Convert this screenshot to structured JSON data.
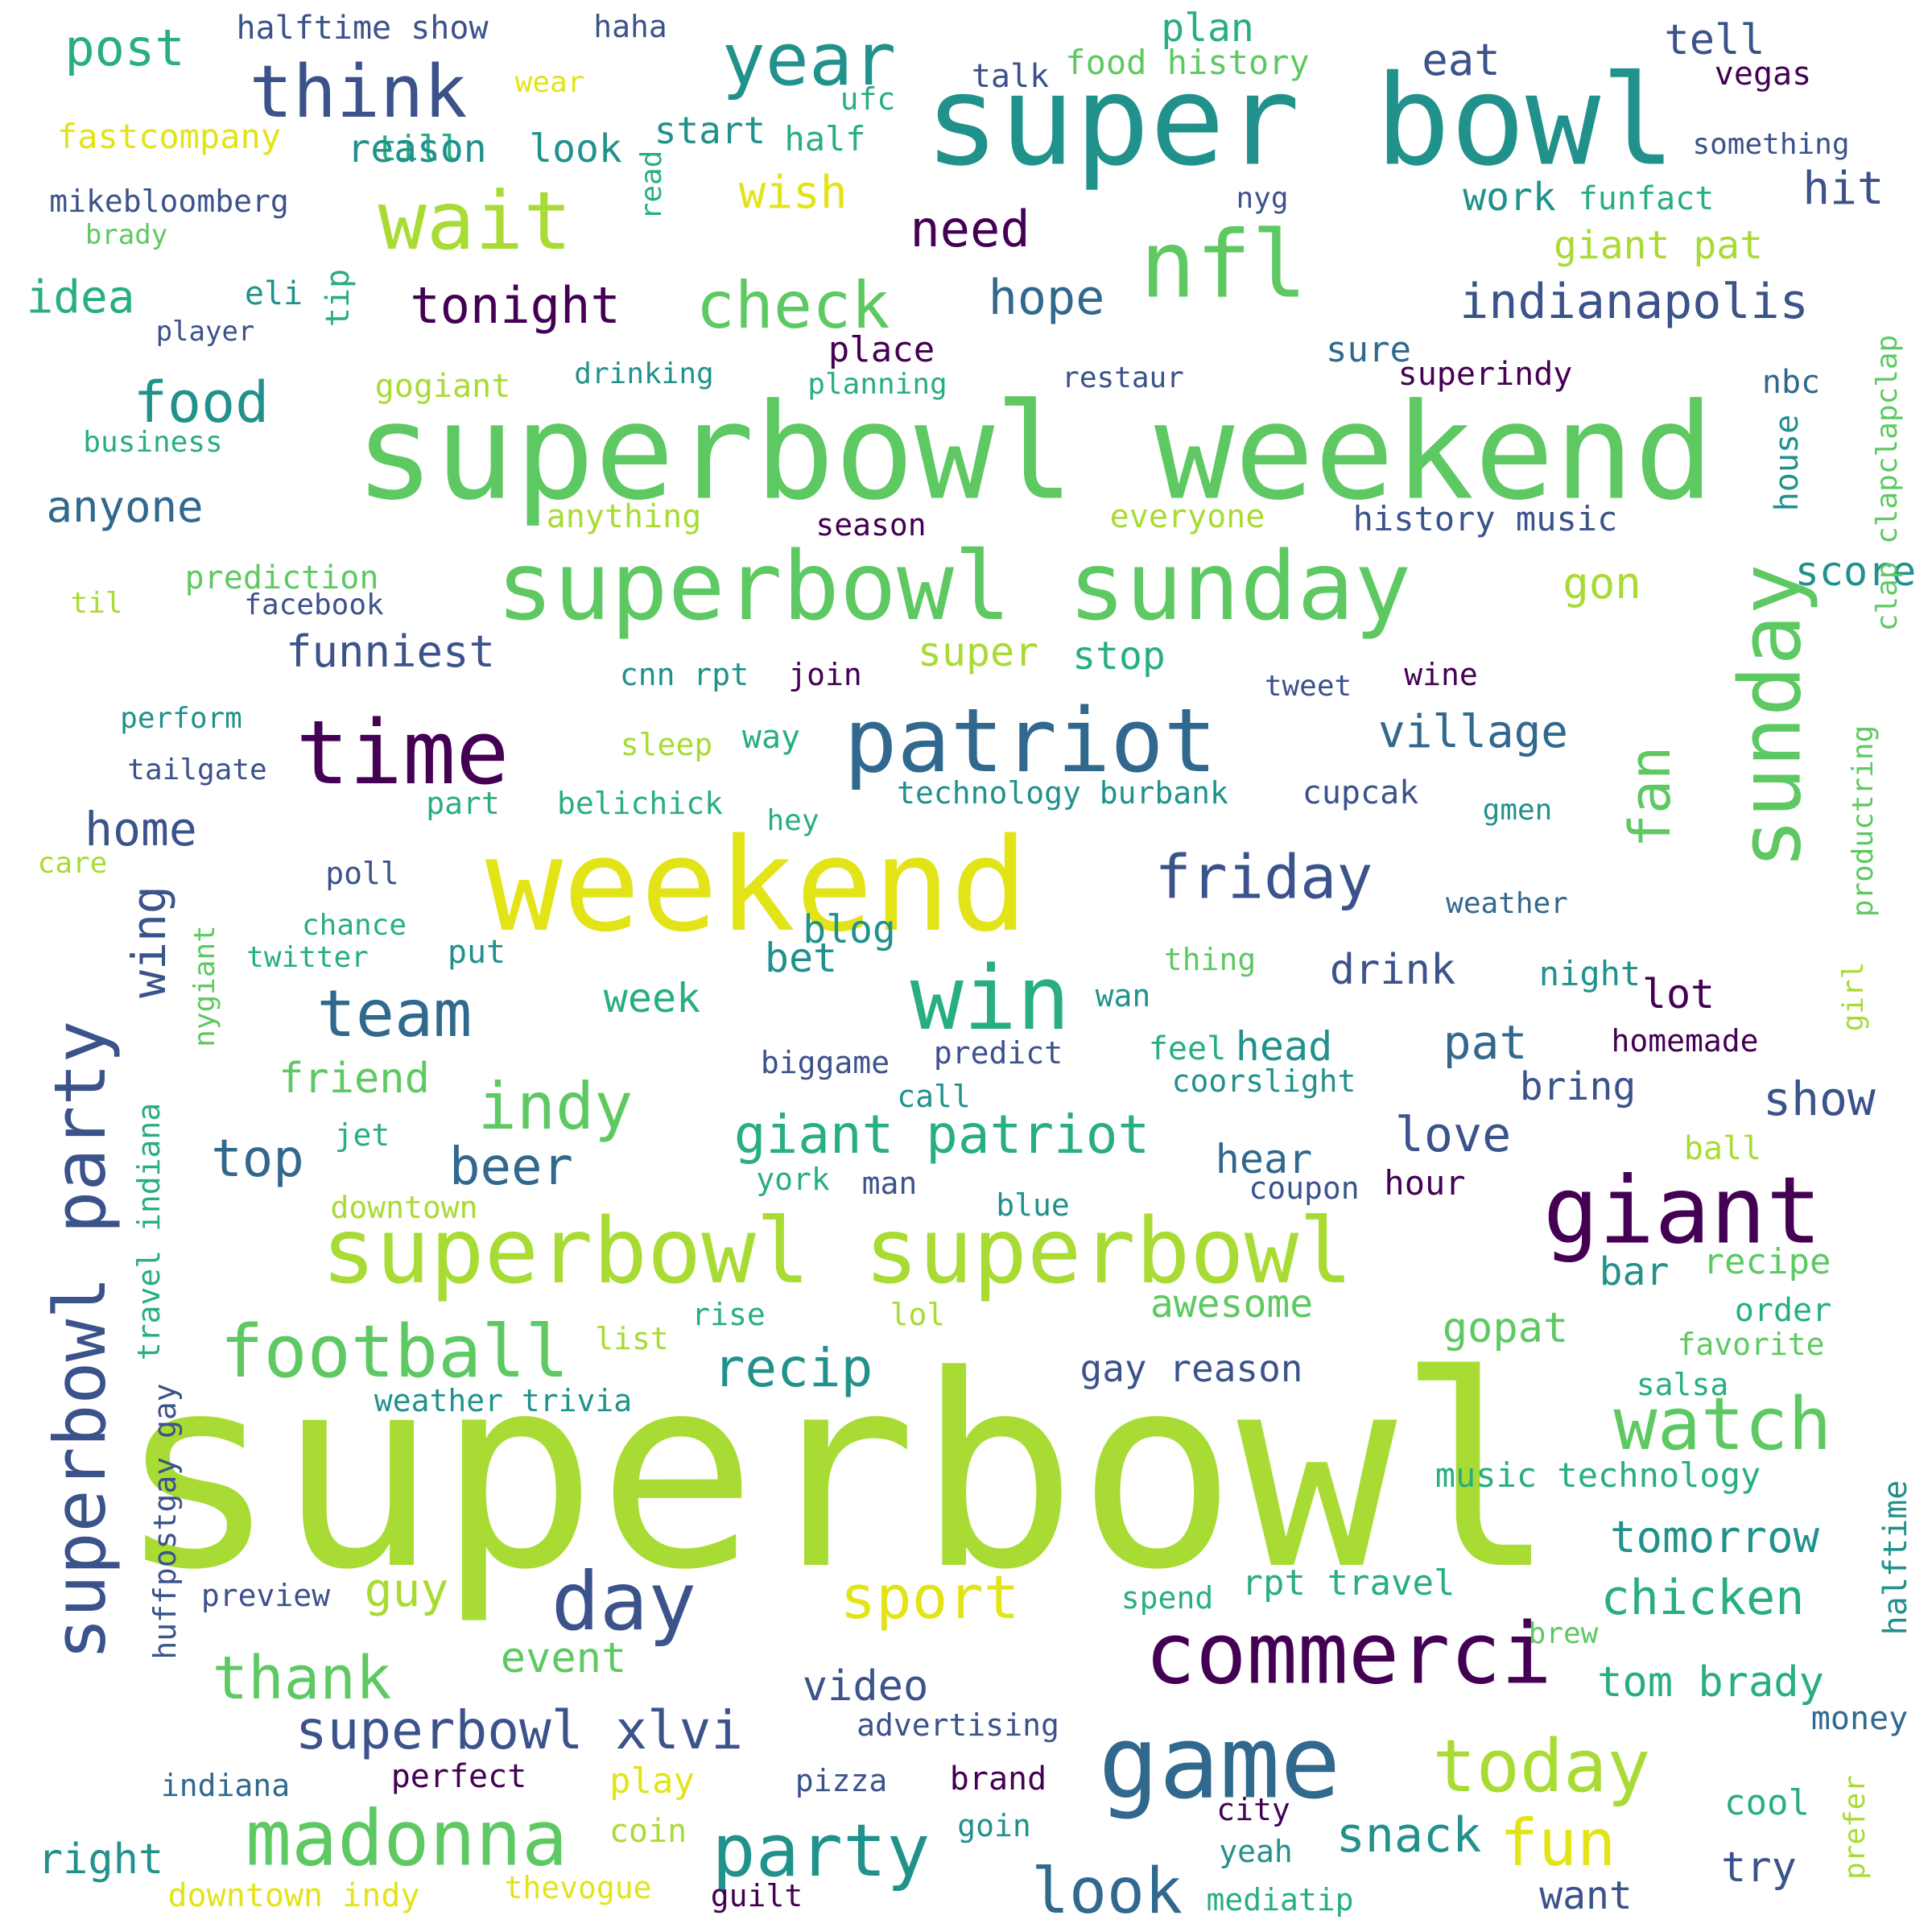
{
  "palette": {
    "yellow": "#e2e418",
    "lime": "#a8db34",
    "green": "#5ec962",
    "teal": "#21918c",
    "blue": "#31688e",
    "indigo": "#3b528b",
    "purple": "#440154",
    "aqua": "#28ae80"
  },
  "words": [
    {
      "text": "superbowl",
      "color": "lime",
      "vertical": false
    },
    {
      "text": "superbowl weekend",
      "color": "green",
      "vertical": false
    },
    {
      "text": "super bowl",
      "color": "teal",
      "vertical": false
    },
    {
      "text": "weekend",
      "color": "yellow",
      "vertical": false
    },
    {
      "text": "superbowl sunday",
      "color": "green",
      "vertical": false
    },
    {
      "text": "superbowl superbowl",
      "color": "lime",
      "vertical": false
    },
    {
      "text": "sunday",
      "color": "green",
      "vertical": true
    },
    {
      "text": "superbowl party",
      "color": "indigo",
      "vertical": true
    },
    {
      "text": "giant",
      "color": "purple",
      "vertical": false
    },
    {
      "text": "game",
      "color": "blue",
      "vertical": false
    },
    {
      "text": "commerci",
      "color": "purple",
      "vertical": false
    },
    {
      "text": "patriot",
      "color": "blue",
      "vertical": false
    },
    {
      "text": "nfl",
      "color": "green",
      "vertical": false
    },
    {
      "text": "win",
      "color": "aqua",
      "vertical": false
    },
    {
      "text": "time",
      "color": "purple",
      "vertical": false
    },
    {
      "text": "think",
      "color": "indigo",
      "vertical": false
    },
    {
      "text": "year",
      "color": "teal",
      "vertical": false
    },
    {
      "text": "wait",
      "color": "lime",
      "vertical": false
    },
    {
      "text": "madonna",
      "color": "green",
      "vertical": false
    },
    {
      "text": "football",
      "color": "green",
      "vertical": false
    },
    {
      "text": "day",
      "color": "indigo",
      "vertical": false
    },
    {
      "text": "party",
      "color": "teal",
      "vertical": false
    },
    {
      "text": "watch",
      "color": "green",
      "vertical": false
    },
    {
      "text": "today",
      "color": "lime",
      "vertical": false
    },
    {
      "text": "fun",
      "color": "yellow",
      "vertical": false
    },
    {
      "text": "look",
      "color": "blue",
      "vertical": false
    },
    {
      "text": "sport",
      "color": "yellow",
      "vertical": false
    },
    {
      "text": "team",
      "color": "blue",
      "vertical": false
    },
    {
      "text": "indy",
      "color": "green",
      "vertical": false
    },
    {
      "text": "friday",
      "color": "indigo",
      "vertical": false
    },
    {
      "text": "fan",
      "color": "green",
      "vertical": true
    },
    {
      "text": "check",
      "color": "green",
      "vertical": false
    },
    {
      "text": "indianapolis",
      "color": "indigo",
      "vertical": false
    },
    {
      "text": "giant patriot",
      "color": "aqua",
      "vertical": false
    },
    {
      "text": "superbowl xlvi",
      "color": "indigo",
      "vertical": false
    },
    {
      "text": "recip",
      "color": "teal",
      "vertical": false
    },
    {
      "text": "thank",
      "color": "green",
      "vertical": false
    },
    {
      "text": "tonight",
      "color": "purple",
      "vertical": false
    },
    {
      "text": "food",
      "color": "teal",
      "vertical": false
    },
    {
      "text": "post",
      "color": "aqua",
      "vertical": false
    },
    {
      "text": "home",
      "color": "indigo",
      "vertical": false
    },
    {
      "text": "wing",
      "color": "indigo",
      "vertical": true
    },
    {
      "text": "beer",
      "color": "blue",
      "vertical": false
    },
    {
      "text": "top",
      "color": "blue",
      "vertical": false
    },
    {
      "text": "village",
      "color": "blue",
      "vertical": false
    },
    {
      "text": "love",
      "color": "indigo",
      "vertical": false
    },
    {
      "text": "snack",
      "color": "teal",
      "vertical": false
    },
    {
      "text": "chicken",
      "color": "aqua",
      "vertical": false
    },
    {
      "text": "tomorrow",
      "color": "teal",
      "vertical": false
    },
    {
      "text": "tom brady",
      "color": "aqua",
      "vertical": false
    },
    {
      "text": "guy",
      "color": "lime",
      "vertical": false
    },
    {
      "text": "event",
      "color": "green",
      "vertical": false
    },
    {
      "text": "video",
      "color": "indigo",
      "vertical": false
    },
    {
      "text": "awesome",
      "color": "green",
      "vertical": false
    },
    {
      "text": "gopat",
      "color": "green",
      "vertical": false
    },
    {
      "text": "pat",
      "color": "blue",
      "vertical": false
    },
    {
      "text": "show",
      "color": "indigo",
      "vertical": false
    },
    {
      "text": "hope",
      "color": "blue",
      "vertical": false
    },
    {
      "text": "need",
      "color": "purple",
      "vertical": false
    },
    {
      "text": "wish",
      "color": "yellow",
      "vertical": false
    },
    {
      "text": "funniest",
      "color": "indigo",
      "vertical": false
    },
    {
      "text": "anyone",
      "color": "blue",
      "vertical": false
    },
    {
      "text": "right",
      "color": "teal",
      "vertical": false
    },
    {
      "text": "friend",
      "color": "green",
      "vertical": false
    },
    {
      "text": "drink",
      "color": "indigo",
      "vertical": false
    },
    {
      "text": "lot",
      "color": "purple",
      "vertical": false
    },
    {
      "text": "bring",
      "color": "indigo",
      "vertical": false
    },
    {
      "text": "hear",
      "color": "blue",
      "vertical": false
    },
    {
      "text": "week",
      "color": "aqua",
      "vertical": false
    },
    {
      "text": "bet",
      "color": "teal",
      "vertical": false
    },
    {
      "text": "blog",
      "color": "teal",
      "vertical": false
    },
    {
      "text": "try",
      "color": "indigo",
      "vertical": false
    },
    {
      "text": "want",
      "color": "indigo",
      "vertical": false
    },
    {
      "text": "cool",
      "color": "aqua",
      "vertical": false
    },
    {
      "text": "idea",
      "color": "aqua",
      "vertical": false
    },
    {
      "text": "hit",
      "color": "indigo",
      "vertical": false
    },
    {
      "text": "eat",
      "color": "indigo",
      "vertical": false
    },
    {
      "text": "plan",
      "color": "aqua",
      "vertical": false
    },
    {
      "text": "tell",
      "color": "indigo",
      "vertical": false
    },
    {
      "text": "giant pat",
      "color": "lime",
      "vertical": false
    },
    {
      "text": "work",
      "color": "teal",
      "vertical": false
    },
    {
      "text": "gon",
      "color": "lime",
      "vertical": false
    },
    {
      "text": "super",
      "color": "lime",
      "vertical": false
    },
    {
      "text": "stop",
      "color": "aqua",
      "vertical": false
    },
    {
      "text": "sure",
      "color": "blue",
      "vertical": false
    },
    {
      "text": "place",
      "color": "purple",
      "vertical": false
    },
    {
      "text": "score",
      "color": "teal",
      "vertical": false
    },
    {
      "text": "house",
      "color": "teal",
      "vertical": true
    },
    {
      "text": "nbc",
      "color": "blue",
      "vertical": false
    },
    {
      "text": "till",
      "color": "aqua",
      "vertical": false
    },
    {
      "text": "reason",
      "color": "teal",
      "vertical": false
    },
    {
      "text": "look",
      "color": "teal",
      "vertical": false
    },
    {
      "text": "start",
      "color": "teal",
      "vertical": false
    },
    {
      "text": "halftime show",
      "color": "indigo",
      "vertical": false
    },
    {
      "text": "haha",
      "color": "indigo",
      "vertical": false
    },
    {
      "text": "fastcompany",
      "color": "yellow",
      "vertical": false
    },
    {
      "text": "half",
      "color": "aqua",
      "vertical": false
    },
    {
      "text": "ufc",
      "color": "aqua",
      "vertical": false
    },
    {
      "text": "talk",
      "color": "indigo",
      "vertical": false
    },
    {
      "text": "food history",
      "color": "green",
      "vertical": false
    },
    {
      "text": "vegas",
      "color": "purple",
      "vertical": false
    },
    {
      "text": "something",
      "color": "indigo",
      "vertical": false
    },
    {
      "text": "mikebloomberg",
      "color": "indigo",
      "vertical": false
    },
    {
      "text": "brady",
      "color": "green",
      "vertical": false
    },
    {
      "text": "wear",
      "color": "yellow",
      "vertical": false
    },
    {
      "text": "read",
      "color": "aqua",
      "vertical": true
    },
    {
      "text": "nyg",
      "color": "indigo",
      "vertical": false
    },
    {
      "text": "funfact",
      "color": "aqua",
      "vertical": false
    },
    {
      "text": "eli",
      "color": "teal",
      "vertical": false
    },
    {
      "text": "tip",
      "color": "aqua",
      "vertical": true
    },
    {
      "text": "player",
      "color": "indigo",
      "vertical": false
    },
    {
      "text": "drinking",
      "color": "teal",
      "vertical": false
    },
    {
      "text": "planning",
      "color": "aqua",
      "vertical": false
    },
    {
      "text": "restaur",
      "color": "indigo",
      "vertical": false
    },
    {
      "text": "superindy",
      "color": "purple",
      "vertical": false
    },
    {
      "text": "gogiant",
      "color": "lime",
      "vertical": false
    },
    {
      "text": "business",
      "color": "aqua",
      "vertical": false
    },
    {
      "text": "anything",
      "color": "lime",
      "vertical": false
    },
    {
      "text": "season",
      "color": "purple",
      "vertical": false
    },
    {
      "text": "everyone",
      "color": "lime",
      "vertical": false
    },
    {
      "text": "history music",
      "color": "indigo",
      "vertical": false
    },
    {
      "text": "clap clapclapclap",
      "color": "green",
      "vertical": true
    },
    {
      "text": "prediction",
      "color": "green",
      "vertical": false
    },
    {
      "text": "til",
      "color": "lime",
      "vertical": false
    },
    {
      "text": "facebook",
      "color": "indigo",
      "vertical": false
    },
    {
      "text": "cnn rpt",
      "color": "teal",
      "vertical": false
    },
    {
      "text": "join",
      "color": "purple",
      "vertical": false
    },
    {
      "text": "tweet",
      "color": "indigo",
      "vertical": false
    },
    {
      "text": "wine",
      "color": "purple",
      "vertical": false
    },
    {
      "text": "perform",
      "color": "teal",
      "vertical": false
    },
    {
      "text": "sleep",
      "color": "lime",
      "vertical": false
    },
    {
      "text": "way",
      "color": "aqua",
      "vertical": false
    },
    {
      "text": "tailgate",
      "color": "indigo",
      "vertical": false
    },
    {
      "text": "part",
      "color": "aqua",
      "vertical": false
    },
    {
      "text": "belichick",
      "color": "aqua",
      "vertical": false
    },
    {
      "text": "technology burbank",
      "color": "teal",
      "vertical": false
    },
    {
      "text": "cupcak",
      "color": "indigo",
      "vertical": false
    },
    {
      "text": "hey",
      "color": "aqua",
      "vertical": false
    },
    {
      "text": "gmen",
      "color": "teal",
      "vertical": false
    },
    {
      "text": "productring",
      "color": "green",
      "vertical": true
    },
    {
      "text": "care",
      "color": "lime",
      "vertical": false
    },
    {
      "text": "poll",
      "color": "indigo",
      "vertical": false
    },
    {
      "text": "chance",
      "color": "aqua",
      "vertical": false
    },
    {
      "text": "twitter",
      "color": "aqua",
      "vertical": false
    },
    {
      "text": "nygiant",
      "color": "green",
      "vertical": true
    },
    {
      "text": "put",
      "color": "teal",
      "vertical": false
    },
    {
      "text": "thing",
      "color": "green",
      "vertical": false
    },
    {
      "text": "weather",
      "color": "blue",
      "vertical": false
    },
    {
      "text": "wan",
      "color": "teal",
      "vertical": false
    },
    {
      "text": "night",
      "color": "teal",
      "vertical": false
    },
    {
      "text": "girl",
      "color": "lime",
      "vertical": true
    },
    {
      "text": "biggame",
      "color": "indigo",
      "vertical": false
    },
    {
      "text": "predict",
      "color": "indigo",
      "vertical": false
    },
    {
      "text": "feel",
      "color": "aqua",
      "vertical": false
    },
    {
      "text": "head",
      "color": "teal",
      "vertical": false
    },
    {
      "text": "homemade",
      "color": "purple",
      "vertical": false
    },
    {
      "text": "call",
      "color": "teal",
      "vertical": false
    },
    {
      "text": "coorslight",
      "color": "teal",
      "vertical": false
    },
    {
      "text": "jet",
      "color": "aqua",
      "vertical": false
    },
    {
      "text": "travel indiana",
      "color": "aqua",
      "vertical": true
    },
    {
      "text": "ball",
      "color": "lime",
      "vertical": false
    },
    {
      "text": "york",
      "color": "aqua",
      "vertical": false
    },
    {
      "text": "man",
      "color": "indigo",
      "vertical": false
    },
    {
      "text": "coupon",
      "color": "indigo",
      "vertical": false
    },
    {
      "text": "hour",
      "color": "purple",
      "vertical": false
    },
    {
      "text": "downtown",
      "color": "lime",
      "vertical": false
    },
    {
      "text": "blue",
      "color": "teal",
      "vertical": false
    },
    {
      "text": "bar",
      "color": "teal",
      "vertical": false
    },
    {
      "text": "recipe",
      "color": "green",
      "vertical": false
    },
    {
      "text": "order",
      "color": "aqua",
      "vertical": false
    },
    {
      "text": "rise",
      "color": "aqua",
      "vertical": false
    },
    {
      "text": "lol",
      "color": "lime",
      "vertical": false
    },
    {
      "text": "list",
      "color": "lime",
      "vertical": false
    },
    {
      "text": "favorite",
      "color": "green",
      "vertical": false
    },
    {
      "text": "gay reason",
      "color": "indigo",
      "vertical": false
    },
    {
      "text": "weather trivia",
      "color": "teal",
      "vertical": false
    },
    {
      "text": "salsa",
      "color": "aqua",
      "vertical": false
    },
    {
      "text": "huffpostgay gay",
      "color": "indigo",
      "vertical": true
    },
    {
      "text": "music technology",
      "color": "aqua",
      "vertical": false
    },
    {
      "text": "halftime",
      "color": "teal",
      "vertical": true
    },
    {
      "text": "preview",
      "color": "indigo",
      "vertical": false
    },
    {
      "text": "spend",
      "color": "aqua",
      "vertical": false
    },
    {
      "text": "rpt travel",
      "color": "aqua",
      "vertical": false
    },
    {
      "text": "brew",
      "color": "green",
      "vertical": false
    },
    {
      "text": "advertising",
      "color": "indigo",
      "vertical": false
    },
    {
      "text": "money",
      "color": "blue",
      "vertical": false
    },
    {
      "text": "perfect",
      "color": "purple",
      "vertical": false
    },
    {
      "text": "play",
      "color": "yellow",
      "vertical": false
    },
    {
      "text": "pizza",
      "color": "indigo",
      "vertical": false
    },
    {
      "text": "brand",
      "color": "purple",
      "vertical": false
    },
    {
      "text": "indiana",
      "color": "blue",
      "vertical": false
    },
    {
      "text": "city",
      "color": "purple",
      "vertical": false
    },
    {
      "text": "goin",
      "color": "teal",
      "vertical": false
    },
    {
      "text": "coin",
      "color": "lime",
      "vertical": false
    },
    {
      "text": "yeah",
      "color": "teal",
      "vertical": false
    },
    {
      "text": "prefer",
      "color": "lime",
      "vertical": true
    },
    {
      "text": "downtown indy",
      "color": "yellow",
      "vertical": false
    },
    {
      "text": "thevogue",
      "color": "yellow",
      "vertical": false
    },
    {
      "text": "guilt",
      "color": "purple",
      "vertical": false
    },
    {
      "text": "mediatip",
      "color": "aqua",
      "vertical": false
    }
  ]
}
